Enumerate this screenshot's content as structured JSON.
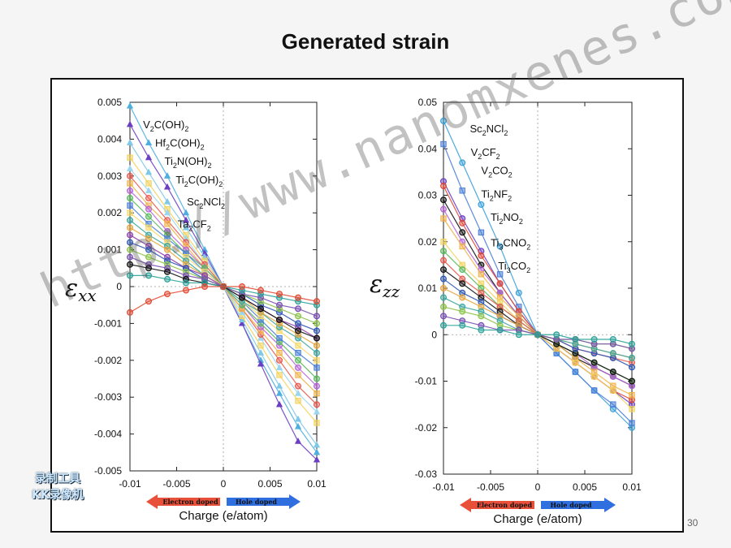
{
  "slide": {
    "title": "Generated strain",
    "page_number": "30",
    "watermark": "http://www.nanomxenes.com",
    "badge_line1": "录制工具",
    "badge_line2": "KK录像机"
  },
  "colors": {
    "electron_arrow": "#e8503a",
    "hole_arrow": "#2f6fe0"
  },
  "chart_data": [
    {
      "type": "line",
      "ylabel_symbol": "ε",
      "ylabel_sub": "xx",
      "xlabel": "Charge (e/atom)",
      "electron_label": "Electron doped",
      "hole_label": "Hole doped",
      "xlim": [
        -0.01,
        0.01
      ],
      "ylim": [
        -0.005,
        0.005
      ],
      "x": [
        -0.01,
        -0.008,
        -0.006,
        -0.004,
        -0.002,
        0,
        0.002,
        0.004,
        0.006,
        0.008,
        0.01
      ],
      "xticks": [
        "-0.01",
        "-0.005",
        "0",
        "0.005",
        "0.01"
      ],
      "yticks": [
        "0.005",
        "0.004",
        "0.003",
        "0.002",
        "0.001",
        "0",
        "-0.001",
        "-0.002",
        "-0.003",
        "-0.004",
        "-0.005"
      ],
      "annotations": [
        {
          "text": "V2C(OH)2",
          "parts": [
            [
              "V",
              ""
            ],
            [
              "2",
              "sub"
            ],
            [
              "C(OH)",
              ""
            ],
            [
              "2",
              "sub"
            ]
          ],
          "x": -0.0086,
          "y": 0.0043
        },
        {
          "text": "Hf2C(OH)2",
          "parts": [
            [
              "Hf",
              ""
            ],
            [
              "2",
              "sub"
            ],
            [
              "C(OH)",
              ""
            ],
            [
              "2",
              "sub"
            ]
          ],
          "x": -0.0073,
          "y": 0.0038
        },
        {
          "text": "Ti2N(OH)2",
          "parts": [
            [
              "Ti",
              ""
            ],
            [
              "2",
              "sub"
            ],
            [
              "N(OH)",
              ""
            ],
            [
              "2",
              "sub"
            ]
          ],
          "x": -0.0063,
          "y": 0.0033
        },
        {
          "text": "Ti2C(OH)2",
          "parts": [
            [
              "Ti",
              ""
            ],
            [
              "2",
              "sub"
            ],
            [
              "C(OH)",
              ""
            ],
            [
              "2",
              "sub"
            ]
          ],
          "x": -0.0051,
          "y": 0.0028
        },
        {
          "text": "Sc2NCl2",
          "parts": [
            [
              "Sc",
              ""
            ],
            [
              "2",
              "sub"
            ],
            [
              "NCl",
              ""
            ],
            [
              "2",
              "sub"
            ]
          ],
          "x": -0.0039,
          "y": 0.0022
        },
        {
          "text": "Ta2CF2",
          "parts": [
            [
              "Ta",
              ""
            ],
            [
              "2",
              "sub"
            ],
            [
              "CF",
              ""
            ],
            [
              "2",
              "sub"
            ]
          ],
          "x": -0.0049,
          "y": 0.0016
        }
      ],
      "series": [
        {
          "color": "#4fb0e0",
          "marker": "tri",
          "values": [
            0.0049,
            0.0039,
            0.003,
            0.002,
            0.001,
            0,
            -0.001,
            -0.002,
            -0.0029,
            -0.0038,
            -0.0045
          ]
        },
        {
          "color": "#6b3fc4",
          "marker": "tri",
          "values": [
            0.0044,
            0.0035,
            0.0027,
            0.0018,
            0.0009,
            0,
            -0.001,
            -0.0021,
            -0.0032,
            -0.0042,
            -0.0047
          ]
        },
        {
          "color": "#7ec8e8",
          "marker": "tri",
          "values": [
            0.0039,
            0.0031,
            0.0023,
            0.0016,
            0.0008,
            0,
            -0.0009,
            -0.0018,
            -0.0027,
            -0.0036,
            -0.0043
          ]
        },
        {
          "color": "#f2d35c",
          "marker": "sq",
          "values": [
            0.0035,
            0.0028,
            0.0021,
            0.0014,
            0.0007,
            0,
            -0.0008,
            -0.0016,
            -0.0024,
            -0.0031,
            -0.0037
          ]
        },
        {
          "color": "#9ad6f0",
          "marker": "tri",
          "values": [
            0.0032,
            0.0026,
            0.002,
            0.0013,
            0.0006,
            0,
            -0.0007,
            -0.0014,
            -0.0022,
            -0.0029,
            -0.0034
          ]
        },
        {
          "color": "#e85a4f",
          "marker": "circ",
          "values": [
            0.003,
            0.0024,
            0.0018,
            0.0012,
            0.0006,
            0,
            -0.0006,
            -0.0013,
            -0.002,
            -0.0027,
            -0.0032
          ]
        },
        {
          "color": "#f0b34a",
          "marker": "sq",
          "values": [
            0.0028,
            0.0022,
            0.0017,
            0.0011,
            0.0005,
            0,
            -0.0006,
            -0.0012,
            -0.0018,
            -0.0024,
            -0.0029
          ]
        },
        {
          "color": "#b565d8",
          "marker": "circ",
          "values": [
            0.0026,
            0.0021,
            0.0015,
            0.001,
            0.0005,
            0,
            -0.0005,
            -0.0011,
            -0.0016,
            -0.0022,
            -0.0027
          ]
        },
        {
          "color": "#59b95b",
          "marker": "circ",
          "values": [
            0.0024,
            0.0019,
            0.0014,
            0.0009,
            0.0005,
            0,
            -0.0005,
            -0.001,
            -0.0015,
            -0.002,
            -0.0025
          ]
        },
        {
          "color": "#4a7fd8",
          "marker": "sq",
          "values": [
            0.0022,
            0.0017,
            0.0013,
            0.0009,
            0.0004,
            0,
            -0.0004,
            -0.0009,
            -0.0014,
            -0.0018,
            -0.0022
          ]
        },
        {
          "color": "#f6d86a",
          "marker": "sq",
          "values": [
            0.002,
            0.0016,
            0.0012,
            0.0008,
            0.0004,
            0,
            -0.0004,
            -0.0008,
            -0.0012,
            -0.0016,
            -0.002
          ]
        },
        {
          "color": "#3aa6a0",
          "marker": "circ",
          "values": [
            0.0018,
            0.0014,
            0.0011,
            0.0007,
            0.0003,
            0,
            -0.0004,
            -0.0007,
            -0.0011,
            -0.0014,
            -0.0018
          ]
        },
        {
          "color": "#e6a53d",
          "marker": "circ",
          "values": [
            0.0016,
            0.0013,
            0.001,
            0.0006,
            0.0003,
            0,
            -0.0003,
            -0.0007,
            -0.001,
            -0.0013,
            -0.0016
          ]
        },
        {
          "color": "#8e44ad",
          "marker": "circ",
          "values": [
            0.0014,
            0.0011,
            0.0008,
            0.0005,
            0.0003,
            0,
            -0.0003,
            -0.0006,
            -0.0009,
            -0.0011,
            -0.0014
          ]
        },
        {
          "color": "#2c57b5",
          "marker": "circ",
          "values": [
            0.0012,
            0.001,
            0.0007,
            0.0005,
            0.0002,
            0,
            -0.0002,
            -0.0005,
            -0.0007,
            -0.001,
            -0.0012
          ]
        },
        {
          "color": "#8bc34a",
          "marker": "circ",
          "values": [
            0.001,
            0.0008,
            0.0006,
            0.0004,
            0.0002,
            0,
            -0.0002,
            -0.0004,
            -0.0006,
            -0.0008,
            -0.001
          ]
        },
        {
          "color": "#7a4fb5",
          "marker": "circ",
          "values": [
            0.0008,
            0.0006,
            0.0005,
            0.0003,
            0.0002,
            0,
            -0.0002,
            -0.0003,
            -0.0005,
            -0.0006,
            -0.0008
          ]
        },
        {
          "color": "#111111",
          "marker": "circ",
          "values": [
            0.0006,
            0.0005,
            0.0004,
            0.0002,
            0.0001,
            0,
            -0.0003,
            -0.0006,
            -0.0009,
            -0.0012,
            -0.0014
          ]
        },
        {
          "color": "#2aa198",
          "marker": "circ",
          "values": [
            0.0003,
            0.0003,
            0.0002,
            0.0001,
            0.0001,
            0,
            -0.0001,
            -0.0002,
            -0.0003,
            -0.0004,
            -0.0005
          ]
        },
        {
          "color": "#e24a33",
          "marker": "circ",
          "values": [
            -0.0007,
            -0.0004,
            -0.0002,
            -0.0001,
            0.0,
            0,
            0.0,
            -0.0001,
            -0.0002,
            -0.0003,
            -0.0004
          ]
        }
      ]
    },
    {
      "type": "line",
      "ylabel_symbol": "ε",
      "ylabel_sub": "zz",
      "xlabel": "Charge (e/atom)",
      "electron_label": "Electron doped",
      "hole_label": "Hole doped",
      "xlim": [
        -0.01,
        0.01
      ],
      "ylim": [
        -0.03,
        0.05
      ],
      "x": [
        -0.01,
        -0.008,
        -0.006,
        -0.004,
        -0.002,
        0,
        0.002,
        0.004,
        0.006,
        0.008,
        0.01
      ],
      "xticks": [
        "-0.01",
        "-0.005",
        "0",
        "0.005",
        "0.01"
      ],
      "yticks": [
        "0.05",
        "0.04",
        "0.03",
        "0.02",
        "0.01",
        "0",
        "-0.01",
        "-0.02",
        "-0.03"
      ],
      "annotations": [
        {
          "text": "Sc2NCl2",
          "parts": [
            [
              "Sc",
              ""
            ],
            [
              "2",
              "sub"
            ],
            [
              "NCl",
              ""
            ],
            [
              "2",
              "sub"
            ]
          ],
          "x": -0.0072,
          "y": 0.0435
        },
        {
          "text": "V2CF2",
          "parts": [
            [
              "V",
              ""
            ],
            [
              "2",
              "sub"
            ],
            [
              "CF",
              ""
            ],
            [
              "2",
              "sub"
            ]
          ],
          "x": -0.0071,
          "y": 0.0385
        },
        {
          "text": "V2CO2",
          "parts": [
            [
              "V",
              ""
            ],
            [
              "2",
              "sub"
            ],
            [
              "CO",
              ""
            ],
            [
              "2",
              "sub"
            ]
          ],
          "x": -0.006,
          "y": 0.0345
        },
        {
          "text": "Ti2NF2",
          "parts": [
            [
              "Ti",
              ""
            ],
            [
              "2",
              "sub"
            ],
            [
              "NF",
              ""
            ],
            [
              "2",
              "sub"
            ]
          ],
          "x": -0.006,
          "y": 0.0295
        },
        {
          "text": "Ti2NO2",
          "parts": [
            [
              "Ti",
              ""
            ],
            [
              "2",
              "sub"
            ],
            [
              "NO",
              ""
            ],
            [
              "2",
              "sub"
            ]
          ],
          "x": -0.005,
          "y": 0.0245
        },
        {
          "text": "Ti3CNO2",
          "parts": [
            [
              "Ti",
              ""
            ],
            [
              "3",
              "sub"
            ],
            [
              "CNO",
              ""
            ],
            [
              "2",
              "sub"
            ]
          ],
          "x": -0.005,
          "y": 0.019
        },
        {
          "text": "Ti3CO2",
          "parts": [
            [
              "Ti",
              ""
            ],
            [
              "3",
              "sub"
            ],
            [
              "CO",
              ""
            ],
            [
              "2",
              "sub"
            ]
          ],
          "x": -0.0042,
          "y": 0.014
        }
      ],
      "series": [
        {
          "color": "#3aa0d8",
          "marker": "circ",
          "values": [
            0.046,
            0.037,
            0.028,
            0.019,
            0.009,
            0,
            -0.004,
            -0.008,
            -0.012,
            -0.016,
            -0.02
          ]
        },
        {
          "color": "#4a7fd8",
          "marker": "sq",
          "values": [
            0.041,
            0.031,
            0.022,
            0.013,
            0.006,
            0,
            -0.004,
            -0.008,
            -0.012,
            -0.015,
            -0.019
          ]
        },
        {
          "color": "#6b3fc4",
          "marker": "circ",
          "values": [
            0.033,
            0.025,
            0.018,
            0.011,
            0.005,
            0,
            -0.003,
            -0.006,
            -0.009,
            -0.012,
            -0.015
          ]
        },
        {
          "color": "#e24a33",
          "marker": "circ",
          "values": [
            0.032,
            0.024,
            0.017,
            0.011,
            0.005,
            0,
            -0.003,
            -0.006,
            -0.009,
            -0.012,
            -0.014
          ]
        },
        {
          "color": "#111111",
          "marker": "circ",
          "values": [
            0.029,
            0.022,
            0.015,
            0.009,
            0.004,
            0,
            -0.002,
            -0.005,
            -0.007,
            -0.009,
            -0.011
          ]
        },
        {
          "color": "#b565d8",
          "marker": "circ",
          "values": [
            0.027,
            0.02,
            0.014,
            0.009,
            0.004,
            0,
            -0.002,
            -0.004,
            -0.007,
            -0.009,
            -0.011
          ]
        },
        {
          "color": "#f0b34a",
          "marker": "sq",
          "values": [
            0.025,
            0.019,
            0.013,
            0.008,
            0.004,
            0,
            -0.002,
            -0.005,
            -0.008,
            -0.011,
            -0.013
          ]
        },
        {
          "color": "#f2d35c",
          "marker": "sq",
          "values": [
            0.02,
            0.015,
            0.011,
            0.007,
            0.003,
            0,
            -0.003,
            -0.006,
            -0.009,
            -0.012,
            -0.016
          ]
        },
        {
          "color": "#59b95b",
          "marker": "circ",
          "values": [
            0.018,
            0.014,
            0.01,
            0.006,
            0.003,
            0,
            -0.002,
            -0.004,
            -0.006,
            -0.008,
            -0.01
          ]
        },
        {
          "color": "#e85a4f",
          "marker": "circ",
          "values": [
            0.016,
            0.012,
            0.009,
            0.006,
            0.003,
            0,
            -0.001,
            -0.003,
            -0.004,
            -0.005,
            -0.006
          ]
        },
        {
          "color": "#111111",
          "marker": "circ",
          "values": [
            0.014,
            0.011,
            0.008,
            0.005,
            0.002,
            0,
            -0.002,
            -0.004,
            -0.006,
            -0.008,
            -0.01
          ]
        },
        {
          "color": "#2c57b5",
          "marker": "circ",
          "values": [
            0.012,
            0.009,
            0.007,
            0.004,
            0.002,
            0,
            -0.001,
            -0.003,
            -0.004,
            -0.005,
            -0.007
          ]
        },
        {
          "color": "#e6a53d",
          "marker": "circ",
          "values": [
            0.01,
            0.008,
            0.006,
            0.004,
            0.002,
            0,
            -0.001,
            -0.002,
            -0.003,
            -0.004,
            -0.005
          ]
        },
        {
          "color": "#3aa6a0",
          "marker": "circ",
          "values": [
            0.008,
            0.006,
            0.005,
            0.003,
            0.001,
            0,
            -0.001,
            -0.002,
            -0.003,
            -0.004,
            -0.005
          ]
        },
        {
          "color": "#8bc34a",
          "marker": "circ",
          "values": [
            0.006,
            0.005,
            0.004,
            0.002,
            0.001,
            0,
            -0.001,
            -0.001,
            -0.002,
            -0.002,
            -0.003
          ]
        },
        {
          "color": "#7a4fb5",
          "marker": "circ",
          "values": [
            0.004,
            0.003,
            0.002,
            0.001,
            0.001,
            0,
            -0.001,
            -0.001,
            -0.002,
            -0.002,
            -0.003
          ]
        },
        {
          "color": "#2aa198",
          "marker": "circ",
          "values": [
            0.002,
            0.002,
            0.001,
            0.001,
            0.0,
            0,
            0.0,
            -0.001,
            -0.001,
            -0.001,
            -0.002
          ]
        }
      ]
    }
  ]
}
